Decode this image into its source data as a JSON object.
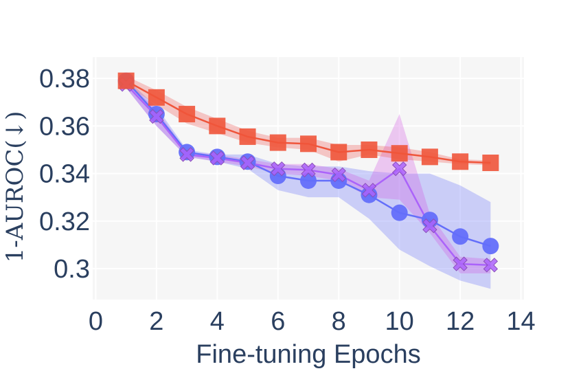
{
  "chart_data": {
    "type": "line",
    "title": "",
    "xlabel": "Fine-tuning Epochs",
    "ylabel": "1-AUROC(↓)",
    "xlim": [
      -0.1,
      14.1
    ],
    "ylim": [
      0.287,
      0.389
    ],
    "xticks": [
      0,
      2,
      4,
      6,
      8,
      10,
      12,
      14
    ],
    "xtick_labels": [
      "0",
      "2",
      "4",
      "6",
      "8",
      "10",
      "12",
      "14"
    ],
    "yticks": [
      0.3,
      0.32,
      0.34,
      0.36,
      0.38
    ],
    "ytick_labels": [
      "0.3",
      "0.32",
      "0.34",
      "0.36",
      "0.38"
    ],
    "grid": true,
    "background": "#f6f6f6",
    "series": [
      {
        "marker": "circle",
        "color": "#636efa",
        "band_color": "#636efa",
        "x": [
          1,
          2,
          3,
          4,
          5,
          6,
          7,
          8,
          9,
          10,
          11,
          12,
          13
        ],
        "y": [
          0.379,
          0.365,
          0.349,
          0.347,
          0.345,
          0.339,
          0.337,
          0.337,
          0.331,
          0.3235,
          0.3205,
          0.3135,
          0.3095
        ],
        "lower": [
          0.376,
          0.36,
          0.347,
          0.345,
          0.342,
          0.333,
          0.33,
          0.33,
          0.321,
          0.308,
          0.301,
          0.295,
          0.2915
        ],
        "upper": [
          0.38,
          0.368,
          0.35,
          0.348,
          0.348,
          0.344,
          0.343,
          0.343,
          0.341,
          0.34,
          0.34,
          0.335,
          0.328
        ]
      },
      {
        "marker": "x",
        "color": "#ab63fa",
        "band_color": "#d055e0",
        "x": [
          1,
          2,
          3,
          4,
          5,
          6,
          7,
          8,
          9,
          10,
          11,
          12,
          13
        ],
        "y": [
          0.3775,
          0.364,
          0.348,
          0.3465,
          0.3445,
          0.342,
          0.3415,
          0.3395,
          0.333,
          0.342,
          0.318,
          0.302,
          0.3015
        ],
        "lower": [
          0.376,
          0.36,
          0.347,
          0.345,
          0.343,
          0.34,
          0.339,
          0.337,
          0.33,
          0.329,
          0.315,
          0.298,
          0.298
        ],
        "upper": [
          0.379,
          0.367,
          0.349,
          0.348,
          0.346,
          0.344,
          0.344,
          0.342,
          0.337,
          0.365,
          0.323,
          0.305,
          0.304
        ]
      },
      {
        "marker": "square",
        "color": "#ef553b",
        "band_color": "#ef5350",
        "x": [
          1,
          2,
          3,
          4,
          5,
          6,
          7,
          8,
          9,
          10,
          11,
          12,
          13
        ],
        "y": [
          0.379,
          0.372,
          0.365,
          0.36,
          0.3555,
          0.353,
          0.3525,
          0.349,
          0.35,
          0.3485,
          0.347,
          0.345,
          0.3445
        ],
        "lower": [
          0.377,
          0.369,
          0.361,
          0.357,
          0.353,
          0.351,
          0.35,
          0.345,
          0.348,
          0.346,
          0.345,
          0.344,
          0.3435
        ],
        "upper": [
          0.381,
          0.375,
          0.368,
          0.363,
          0.358,
          0.355,
          0.355,
          0.352,
          0.352,
          0.351,
          0.349,
          0.346,
          0.3455
        ]
      }
    ]
  }
}
